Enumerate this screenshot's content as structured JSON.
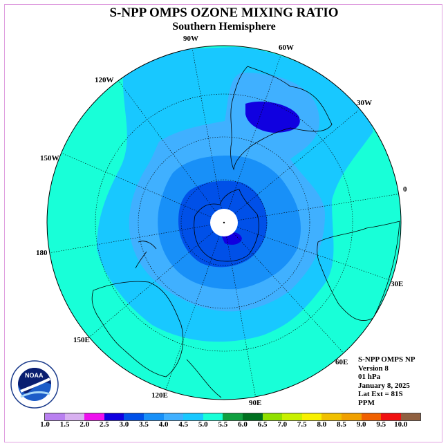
{
  "title": "S-NPP OMPS OZONE MIXING RATIO",
  "subtitle": "Southern Hemisphere",
  "longitude_labels": [
    "90W",
    "60W",
    "30W",
    "0",
    "30E",
    "60E",
    "90E",
    "120E",
    "150E",
    "180",
    "150W",
    "120W"
  ],
  "logo": {
    "name": "NOAA",
    "ring_text": "NATIONAL OCEANIC AND ATMOSPHERIC ADMINISTRATION  U.S. DEPARTMENT OF COMMERCE"
  },
  "info": [
    "S-NPP OMPS NP",
    "Version 8",
    "01 hPa",
    "January 8, 2025",
    "Lat Ext = 81S",
    "PPM"
  ],
  "colorbar": {
    "ticks": [
      "1.0",
      "1.5",
      "2.0",
      "2.5",
      "3.0",
      "3.5",
      "4.0",
      "4.5",
      "5.0",
      "5.5",
      "6.0",
      "6.5",
      "7.0",
      "7.5",
      "8.0",
      "8.5",
      "9.0",
      "9.5",
      "10.0"
    ],
    "colors": [
      "#b980f0",
      "#d8b0f0",
      "#ee10ee",
      "#1000e0",
      "#0050e8",
      "#1890f8",
      "#40b0ff",
      "#18c8ff",
      "#18ffd8",
      "#10a040",
      "#007020",
      "#90e000",
      "#c8f000",
      "#f8f000",
      "#f0c000",
      "#f0a000",
      "#f06000",
      "#f01010",
      "#906040"
    ]
  },
  "colors": {
    "outer": "#18ffd8",
    "band_45": "#18c8ff",
    "band_40": "#40b0ff",
    "band_35": "#1890f8",
    "band_30": "#0050e8",
    "band_25": "#1000e0"
  }
}
